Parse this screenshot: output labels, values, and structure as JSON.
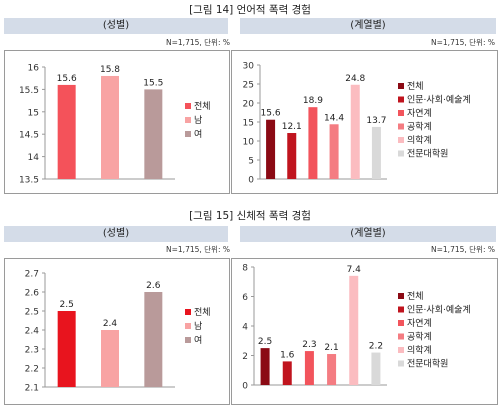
{
  "figures": [
    {
      "title": "[그림 14] 언어적 폭력 경험",
      "left_header": "(성별)",
      "right_header": "(계열별)",
      "note": "N=1,715, 단위: %"
    },
    {
      "title": "[그림 15] 신체적 폭력 경험",
      "left_header": "(성별)",
      "right_header": "(계열별)",
      "note": "N=1,715, 단위: %"
    }
  ],
  "chart_data": [
    {
      "type": "bar",
      "categories": [
        "전체",
        "남",
        "여"
      ],
      "values": [
        15.6,
        15.8,
        15.5
      ],
      "colors": [
        "#f4525a",
        "#f8a3a3",
        "#b99a9a"
      ],
      "ylim": [
        13.5,
        16
      ],
      "yticks": [
        13.5,
        14,
        14.5,
        15,
        15.5,
        16
      ],
      "legend": [
        "전체",
        "남",
        "여"
      ],
      "legend_position": "right"
    },
    {
      "type": "bar",
      "categories": [
        "전체",
        "인문·사회·예술계",
        "자연계",
        "공학계",
        "의학계",
        "전문대학원"
      ],
      "values": [
        15.6,
        12.1,
        18.9,
        14.4,
        24.8,
        13.7
      ],
      "colors": [
        "#8b0a14",
        "#c0141e",
        "#f2545c",
        "#f47c82",
        "#fbbcc0",
        "#d9d9d9"
      ],
      "ylim": [
        0,
        30
      ],
      "yticks": [
        0,
        5,
        10,
        15,
        20,
        25,
        30
      ],
      "legend": [
        "전체",
        "인문·사회·예술계",
        "자연계",
        "공학계",
        "의학계",
        "전문대학원"
      ],
      "legend_position": "right"
    },
    {
      "type": "bar",
      "categories": [
        "전체",
        "남",
        "여"
      ],
      "values": [
        2.5,
        2.4,
        2.6
      ],
      "colors": [
        "#e8141e",
        "#f8a3a3",
        "#b99a9a"
      ],
      "ylim": [
        2.1,
        2.7
      ],
      "yticks": [
        2.1,
        2.2,
        2.3,
        2.4,
        2.5,
        2.6,
        2.7
      ],
      "legend": [
        "전체",
        "남",
        "여"
      ],
      "legend_position": "right"
    },
    {
      "type": "bar",
      "categories": [
        "전체",
        "인문·사회·예술계",
        "자연계",
        "공학계",
        "의학계",
        "전문대학원"
      ],
      "values": [
        2.5,
        1.6,
        2.3,
        2.1,
        7.4,
        2.2
      ],
      "colors": [
        "#8b0a14",
        "#c0141e",
        "#f2545c",
        "#f47c82",
        "#fbbcc0",
        "#d9d9d9"
      ],
      "ylim": [
        0,
        8
      ],
      "yticks": [
        0,
        2,
        4,
        6,
        8
      ],
      "legend": [
        "전체",
        "인문·사회·예술계",
        "자연계",
        "공학계",
        "의학계",
        "전문대학원"
      ],
      "legend_position": "top-right"
    }
  ]
}
